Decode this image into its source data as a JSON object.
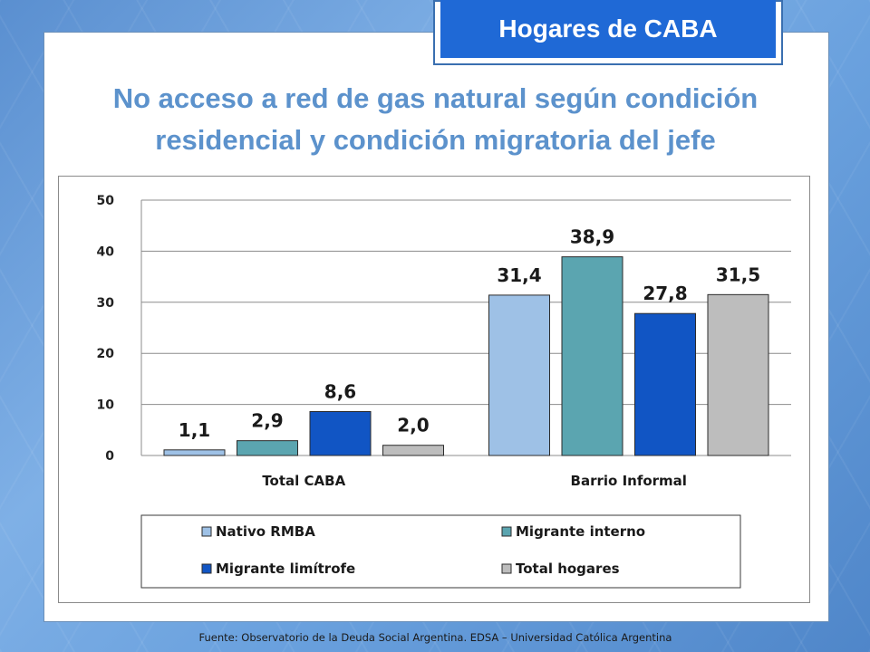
{
  "badge": {
    "label": "Hogares de CABA"
  },
  "title": {
    "line1": "No acceso a red de gas natural según condición",
    "line2": "residencial y condición migratoria del jefe"
  },
  "footer": {
    "text": "Fuente:  Observatorio de  la Deuda Social Argentina. EDSA  – Universidad Católica Argentina"
  },
  "chart_data": {
    "type": "bar",
    "categories": [
      "Total CABA",
      "Barrio Informal"
    ],
    "series": [
      {
        "name": "Nativo RMBA",
        "values": [
          1.1,
          31.4
        ],
        "labels": [
          "1,1",
          "31,4"
        ],
        "color": "#9ec1e6"
      },
      {
        "name": "Migrante interno",
        "values": [
          2.9,
          38.9
        ],
        "labels": [
          "2,9",
          "38,9"
        ],
        "color": "#5ba5b0"
      },
      {
        "name": "Migrante limítrofe",
        "values": [
          8.6,
          27.8
        ],
        "labels": [
          "8,6",
          "27,8"
        ],
        "color": "#1155c4"
      },
      {
        "name": "Total hogares",
        "values": [
          2.0,
          31.5
        ],
        "labels": [
          "2,0",
          "31,5"
        ],
        "color": "#bdbdbd"
      }
    ],
    "yticks": [
      "0",
      "10",
      "20",
      "30",
      "40",
      "50"
    ],
    "ylim": [
      0,
      50
    ],
    "grid": true,
    "legend": "bottom"
  }
}
